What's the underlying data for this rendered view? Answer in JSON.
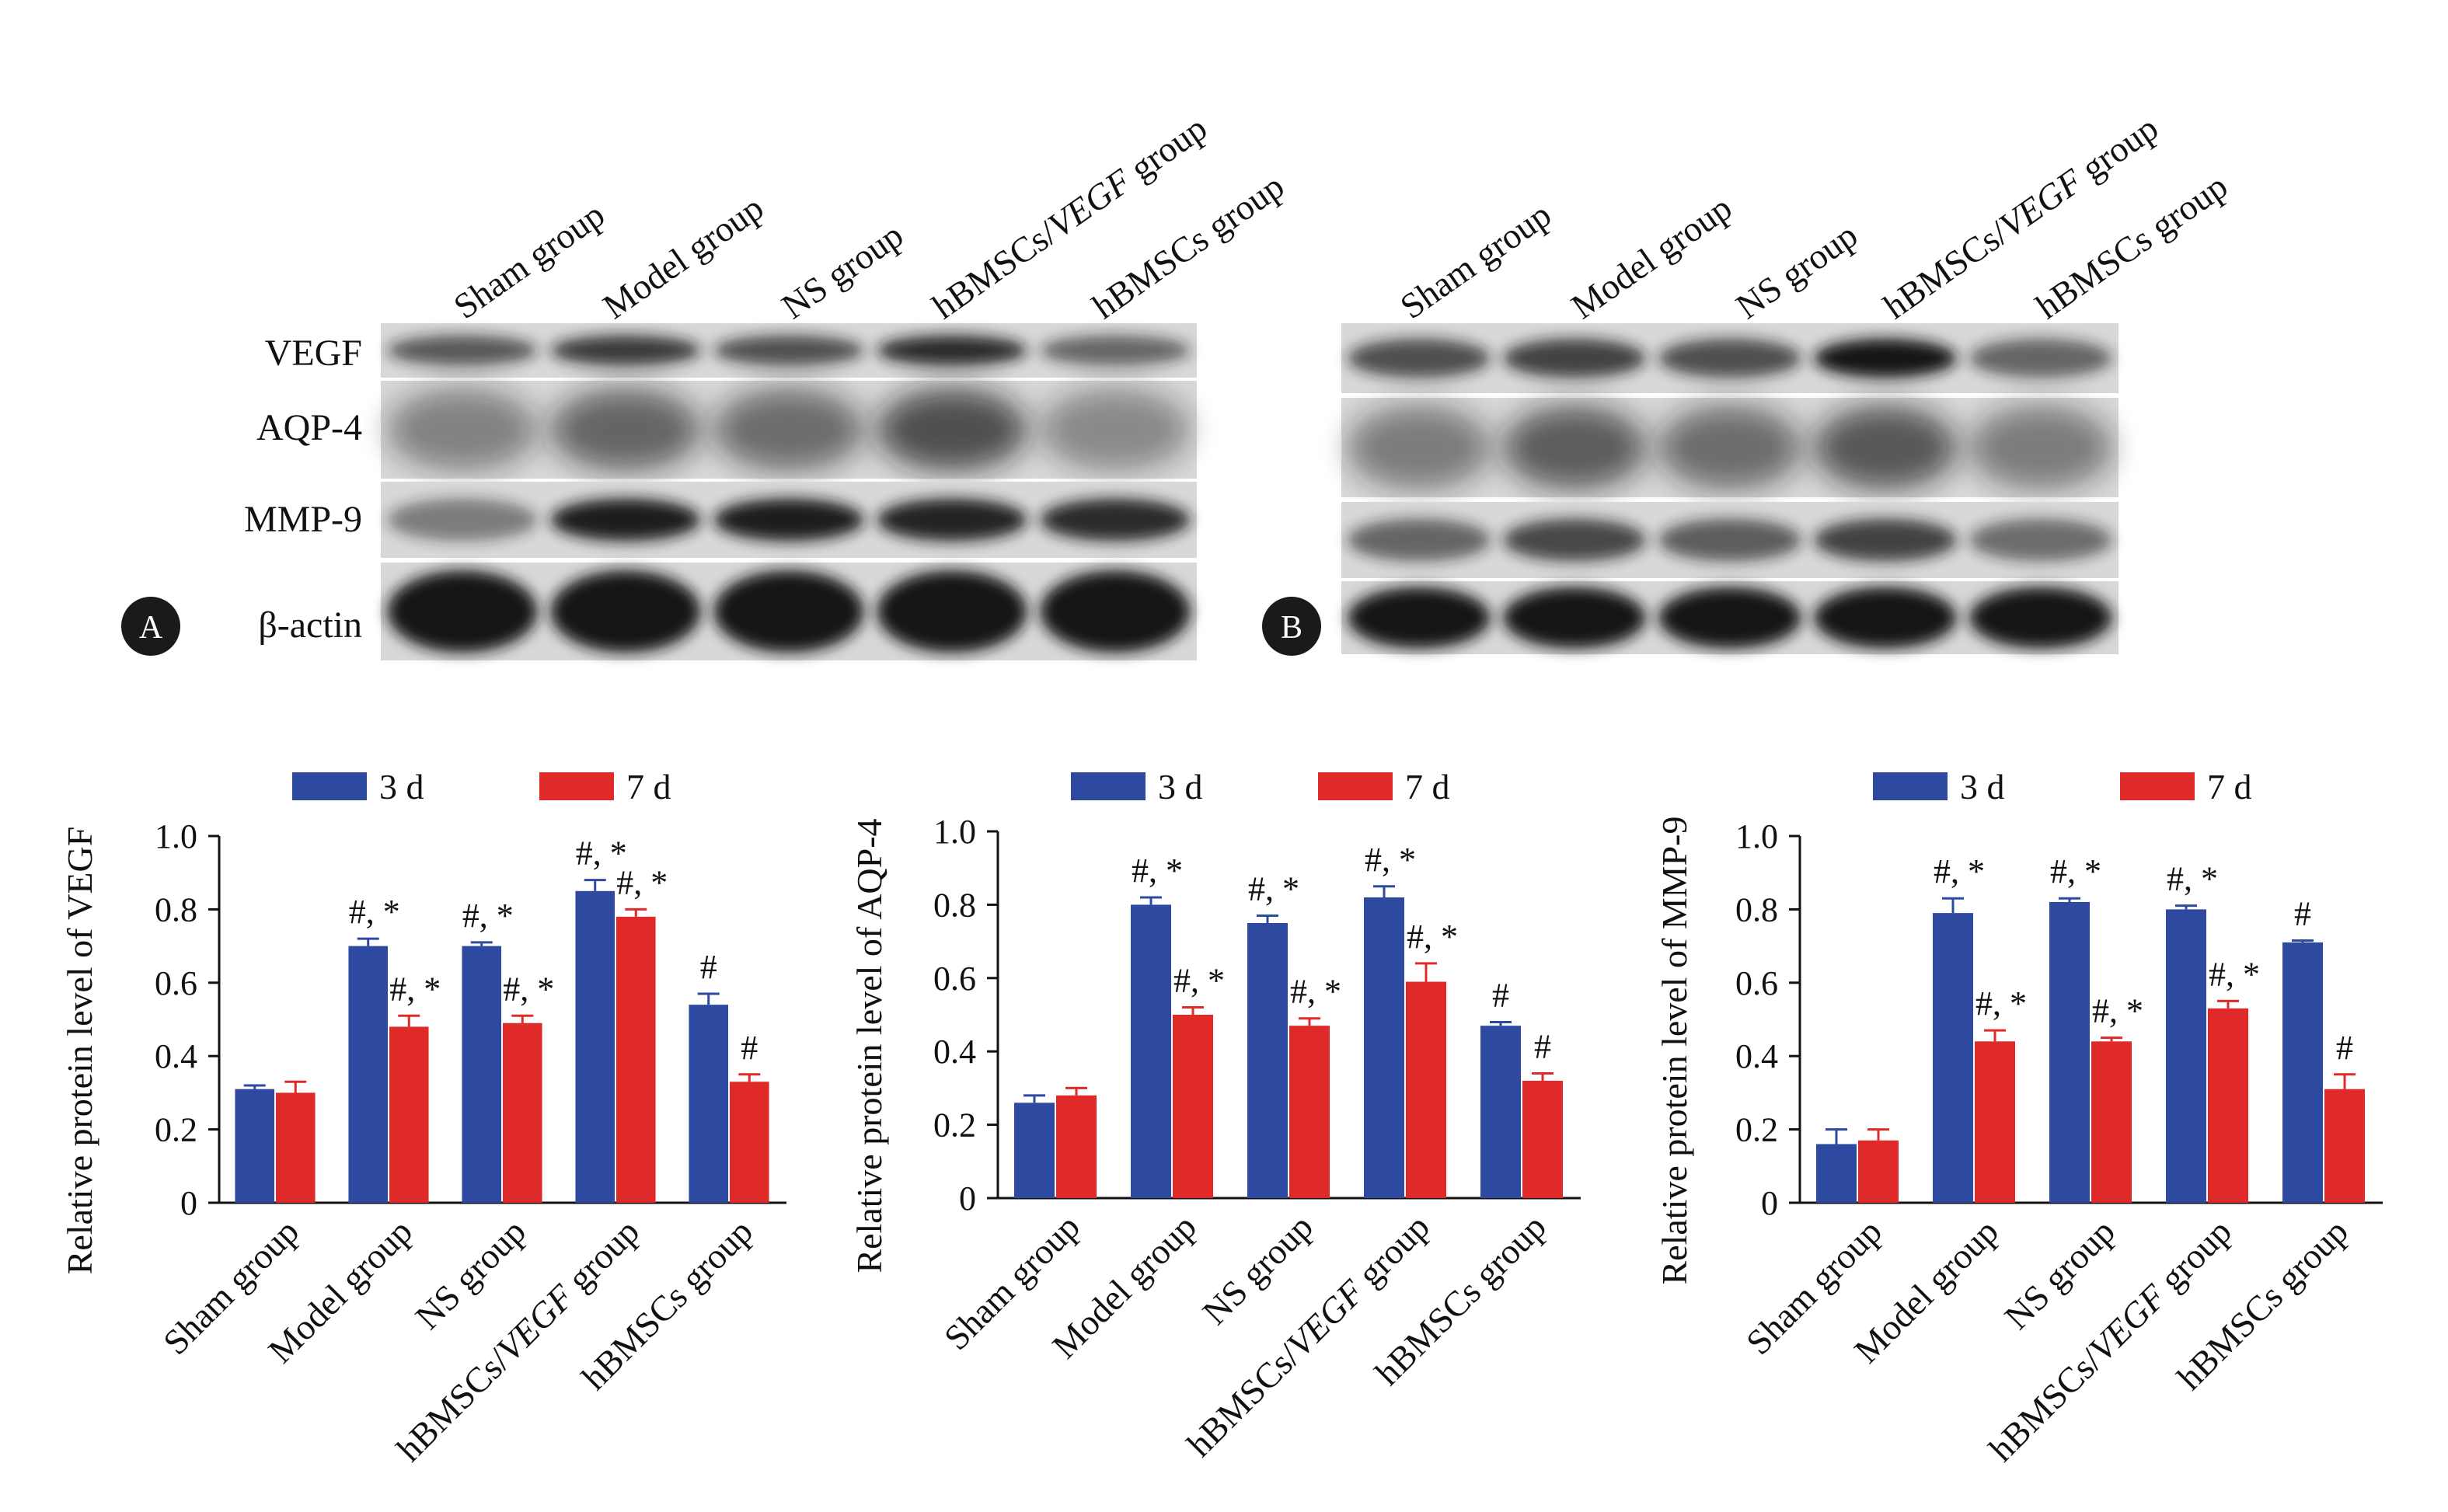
{
  "colors": {
    "series_3d": "#2e4aa0",
    "series_7d": "#e02a2a",
    "axis": "#111111",
    "blot_bg": "#d8d8d8",
    "band": "#141414"
  },
  "blot": {
    "lanes": [
      "Sham group",
      "Model group",
      "NS group",
      "hBMSCs/VEGF  group",
      "hBMSCs group"
    ],
    "lanes_b": [
      "Sham group",
      "Model group",
      "NS group",
      "hBMSCs/VEGF group",
      "hBMSCs group"
    ],
    "rows": [
      "VEGF",
      "AQP-4",
      "MMP-9",
      "β-actin"
    ],
    "panel_a": "A",
    "panel_b": "B",
    "intensity_a": [
      [
        0.55,
        0.75,
        0.6,
        0.85,
        0.45
      ],
      [
        0.25,
        0.45,
        0.4,
        0.6,
        0.2
      ],
      [
        0.3,
        0.95,
        0.95,
        0.9,
        0.85
      ],
      [
        1.0,
        1.0,
        1.0,
        1.0,
        1.0
      ]
    ],
    "intensity_b": [
      [
        0.6,
        0.7,
        0.6,
        1.0,
        0.45
      ],
      [
        0.3,
        0.5,
        0.4,
        0.55,
        0.3
      ],
      [
        0.45,
        0.65,
        0.5,
        0.7,
        0.4
      ],
      [
        1.0,
        1.0,
        1.0,
        1.0,
        1.0
      ]
    ]
  },
  "chart_data": [
    {
      "type": "bar",
      "title": "",
      "ylabel": "Relative protein level of VEGF",
      "xlabel": "",
      "ylim": [
        0,
        1.0
      ],
      "yticks": [
        "0",
        "0.2",
        "0.4",
        "0.6",
        "0.8",
        "1.0"
      ],
      "categories": [
        "Sham group",
        "Model group",
        "NS group",
        "hBMSCs/VEGF group",
        "hBMSCs group"
      ],
      "legend": "top",
      "series": [
        {
          "name": "3 d",
          "values": [
            0.31,
            0.7,
            0.7,
            0.85,
            0.54
          ],
          "errors": [
            0.01,
            0.02,
            0.01,
            0.03,
            0.03
          ],
          "labels": [
            "",
            "#, *",
            "#, *",
            "#, *",
            "#"
          ]
        },
        {
          "name": "7 d",
          "values": [
            0.3,
            0.48,
            0.49,
            0.78,
            0.33
          ],
          "errors": [
            0.03,
            0.03,
            0.02,
            0.02,
            0.02
          ],
          "labels": [
            "",
            "#, *",
            "#, *",
            "#, *",
            "#"
          ]
        }
      ]
    },
    {
      "type": "bar",
      "title": "",
      "ylabel": "Relative protein level of AQP-4",
      "xlabel": "",
      "ylim": [
        0,
        1.0
      ],
      "yticks": [
        "0",
        "0.2",
        "0.4",
        "0.6",
        "0.8",
        "1.0"
      ],
      "categories": [
        "Sham group",
        "Model group",
        "NS group",
        "hBMSCs/VEGF group",
        "hBMSCs group"
      ],
      "legend": "top",
      "series": [
        {
          "name": "3 d",
          "values": [
            0.26,
            0.8,
            0.75,
            0.82,
            0.47
          ],
          "errors": [
            0.02,
            0.02,
            0.02,
            0.03,
            0.01
          ],
          "labels": [
            "",
            "#, *",
            "#, *",
            "#, *",
            "#"
          ]
        },
        {
          "name": "7 d",
          "values": [
            0.28,
            0.5,
            0.47,
            0.59,
            0.32
          ],
          "errors": [
            0.02,
            0.02,
            0.02,
            0.05,
            0.02
          ],
          "labels": [
            "",
            "#, *",
            "#, *",
            "#, *",
            "#"
          ]
        }
      ]
    },
    {
      "type": "bar",
      "title": "",
      "ylabel": "Relative protein level of MMP-9",
      "xlabel": "",
      "ylim": [
        0,
        1.0
      ],
      "yticks": [
        "0",
        "0.2",
        "0.4",
        "0.6",
        "0.8",
        "1.0"
      ],
      "categories": [
        "Sham group",
        "Model group",
        "NS group",
        "hBMSCs/VEGF group",
        "hBMSCs group"
      ],
      "legend": "top",
      "series": [
        {
          "name": "3 d",
          "values": [
            0.16,
            0.79,
            0.82,
            0.8,
            0.71
          ],
          "errors": [
            0.04,
            0.04,
            0.01,
            0.01,
            0.005
          ],
          "labels": [
            "",
            "#, *",
            "#, *",
            "#, *",
            "#"
          ]
        },
        {
          "name": "7 d",
          "values": [
            0.17,
            0.44,
            0.44,
            0.53,
            0.31
          ],
          "errors": [
            0.03,
            0.03,
            0.01,
            0.02,
            0.04
          ],
          "labels": [
            "",
            "#, *",
            "#, *",
            "#, *",
            "#"
          ]
        }
      ]
    }
  ]
}
